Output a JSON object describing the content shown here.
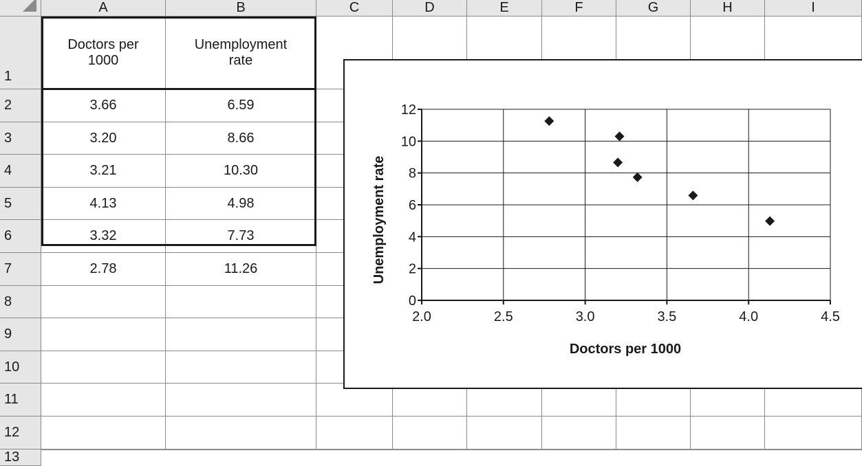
{
  "spreadsheet": {
    "columns": [
      "A",
      "B",
      "C",
      "D",
      "E",
      "F",
      "G",
      "H",
      "I"
    ],
    "rows": [
      "1",
      "2",
      "3",
      "4",
      "5",
      "6",
      "7",
      "8",
      "9",
      "10",
      "11",
      "12",
      "13"
    ],
    "cells": {
      "A1": "Doctors per\n1000",
      "B1": "Unemployment\nrate",
      "A2": "3.66",
      "B2": "6.59",
      "A3": "3.20",
      "B3": "8.66",
      "A4": "3.21",
      "B4": "10.30",
      "A5": "4.13",
      "B5": "4.98",
      "A6": "3.32",
      "B6": "7.73",
      "A7": "2.78",
      "B7": "11.26"
    }
  },
  "chart_data": {
    "type": "scatter",
    "title": "",
    "xlabel": "Doctors per 1000",
    "ylabel": "Unemployment rate",
    "xlim": [
      2.0,
      4.5
    ],
    "ylim": [
      0,
      12
    ],
    "x_ticks": [
      "2.0",
      "2.5",
      "3.0",
      "3.5",
      "4.0",
      "4.5"
    ],
    "y_ticks": [
      "0",
      "2",
      "4",
      "6",
      "8",
      "10",
      "12"
    ],
    "grid": true,
    "legend": "none",
    "marker": "diamond",
    "marker_color": "#1a1a1a",
    "x": [
      3.66,
      3.2,
      3.21,
      4.13,
      3.32,
      2.78
    ],
    "y": [
      6.59,
      8.66,
      10.3,
      4.98,
      7.73,
      11.26
    ]
  }
}
